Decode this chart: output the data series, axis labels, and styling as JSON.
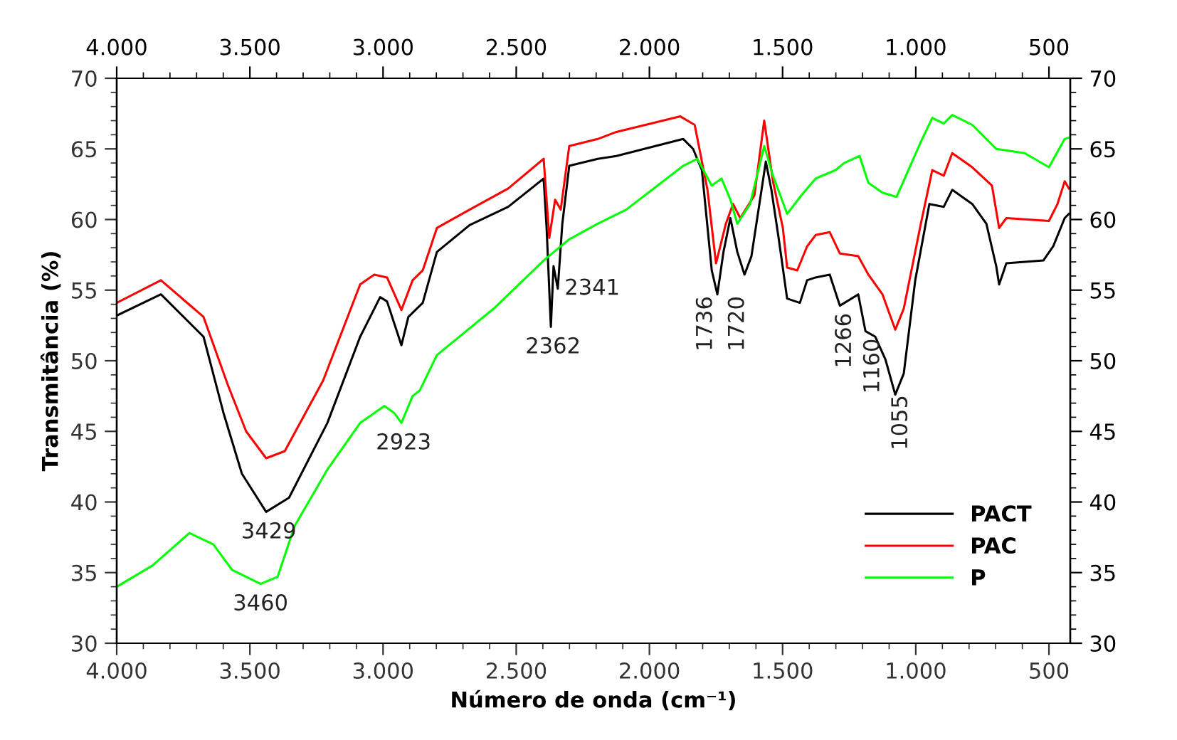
{
  "chart_data": {
    "type": "line",
    "xlabel": "Número de onda (cm⁻¹)",
    "ylabel": "Transmitância (%)",
    "xlim": [
      4000,
      420
    ],
    "ylim": [
      30,
      70
    ],
    "xticks": [
      {
        "value": 4000,
        "label": "4.000"
      },
      {
        "value": 3500,
        "label": "3.500"
      },
      {
        "value": 3000,
        "label": "3.000"
      },
      {
        "value": 2500,
        "label": "2.500"
      },
      {
        "value": 2000,
        "label": "2.000"
      },
      {
        "value": 1500,
        "label": "1.500"
      },
      {
        "value": 1000,
        "label": "1.000"
      },
      500
    ],
    "x2lim": [
      4000,
      420
    ],
    "x2ticks": [
      {
        "value": 4000,
        "label": "4.000"
      },
      {
        "value": 3500,
        "label": "3.500"
      },
      {
        "value": 3000,
        "label": "3.000"
      },
      {
        "value": 2500,
        "label": "2.500"
      },
      {
        "value": 2000,
        "label": "2.000"
      },
      {
        "value": 1500,
        "label": "1.500"
      },
      {
        "value": 1000,
        "label": "1.000"
      },
      500
    ],
    "yticks": [
      30,
      35,
      40,
      45,
      50,
      55,
      60,
      65,
      70
    ],
    "y2lim": [
      30,
      70
    ],
    "y2ticks": [
      30,
      35,
      40,
      45,
      50,
      55,
      60,
      65,
      70
    ],
    "grid": false,
    "legend": "bottom right",
    "marker": "none",
    "line_style": "solid",
    "series": [
      {
        "name": "PACT",
        "color": "#000000",
        "x": [
          4000,
          3834,
          3674,
          3599,
          3530,
          3439,
          3353,
          3209,
          3086,
          3011,
          2985,
          2931,
          2905,
          2851,
          2798,
          2675,
          2530,
          2397,
          2386,
          2370,
          2360,
          2344,
          2327,
          2301,
          2194,
          2124,
          1873,
          1836,
          1803,
          1766,
          1745,
          1722,
          1696,
          1670,
          1643,
          1617,
          1579,
          1563,
          1542,
          1515,
          1483,
          1435,
          1408,
          1376,
          1323,
          1285,
          1216,
          1189,
          1152,
          1114,
          1077,
          1045,
          1002,
          949,
          895,
          863,
          788,
          735,
          698,
          687,
          660,
          521,
          484,
          441,
          425
        ],
        "values": [
          53.2,
          54.7,
          51.7,
          46.3,
          42.0,
          39.3,
          40.3,
          45.6,
          51.7,
          54.5,
          54.2,
          51.1,
          53.1,
          54.1,
          57.7,
          59.6,
          60.9,
          62.9,
          59.4,
          52.4,
          56.7,
          55.1,
          59.7,
          63.8,
          64.3,
          64.5,
          65.7,
          65.0,
          63.5,
          56.4,
          54.7,
          57.7,
          60.1,
          57.7,
          56.1,
          57.4,
          62.1,
          64.1,
          62.1,
          58.7,
          54.4,
          54.1,
          55.7,
          55.9,
          56.1,
          53.9,
          54.7,
          52.1,
          51.7,
          50.1,
          47.6,
          49.1,
          55.7,
          61.1,
          60.9,
          62.1,
          61.1,
          59.7,
          56.7,
          55.4,
          56.9,
          57.1,
          58.1,
          60.1,
          60.4
        ]
      },
      {
        "name": "PAC",
        "color": "#ff0000",
        "x": [
          4000,
          3834,
          3674,
          3583,
          3514,
          3439,
          3369,
          3225,
          3086,
          3033,
          2985,
          2931,
          2889,
          2851,
          2798,
          2675,
          2530,
          2397,
          2376,
          2354,
          2333,
          2301,
          2194,
          2124,
          1884,
          1830,
          1782,
          1750,
          1713,
          1686,
          1659,
          1606,
          1569,
          1536,
          1499,
          1483,
          1445,
          1408,
          1376,
          1323,
          1285,
          1216,
          1178,
          1125,
          1077,
          1045,
          981,
          938,
          895,
          863,
          788,
          714,
          687,
          660,
          500,
          468,
          441,
          425
        ],
        "values": [
          54.1,
          55.7,
          53.1,
          48.3,
          45.0,
          43.1,
          43.6,
          48.6,
          55.4,
          56.1,
          55.9,
          53.6,
          55.7,
          56.4,
          59.4,
          60.7,
          62.2,
          64.3,
          58.7,
          61.4,
          60.7,
          65.2,
          65.7,
          66.2,
          67.3,
          66.7,
          62.1,
          56.9,
          59.7,
          61.1,
          60.1,
          61.7,
          67.0,
          62.7,
          59.4,
          56.6,
          56.4,
          58.1,
          58.9,
          59.1,
          57.6,
          57.4,
          56.1,
          54.7,
          52.2,
          53.7,
          59.7,
          63.5,
          63.1,
          64.7,
          63.7,
          62.4,
          59.4,
          60.1,
          59.9,
          61.1,
          62.7,
          62.2
        ]
      },
      {
        "name": "P",
        "color": "#00ff00",
        "x": [
          4000,
          3866,
          3727,
          3637,
          3567,
          3460,
          3396,
          3332,
          3209,
          3086,
          2995,
          2958,
          2931,
          2889,
          2862,
          2798,
          2584,
          2397,
          2365,
          2301,
          2194,
          2087,
          1873,
          1820,
          1766,
          1729,
          1696,
          1670,
          1622,
          1569,
          1536,
          1483,
          1430,
          1376,
          1301,
          1269,
          1211,
          1178,
          1125,
          1072,
          981,
          938,
          895,
          863,
          788,
          698,
          591,
          500,
          441,
          425
        ],
        "values": [
          34.0,
          35.5,
          37.8,
          37.0,
          35.2,
          34.2,
          34.7,
          38.3,
          42.3,
          45.6,
          46.8,
          46.3,
          45.6,
          47.5,
          47.9,
          50.4,
          53.7,
          57.1,
          57.6,
          58.6,
          59.7,
          60.7,
          63.8,
          64.3,
          62.4,
          62.9,
          61.4,
          59.7,
          61.1,
          65.2,
          63.1,
          60.4,
          61.7,
          62.9,
          63.5,
          64.0,
          64.5,
          62.6,
          61.9,
          61.6,
          65.5,
          67.2,
          66.8,
          67.4,
          66.7,
          65.0,
          64.7,
          63.7,
          65.7,
          65.8
        ]
      }
    ],
    "annotations": [
      {
        "text": "3429",
        "x": 3429,
        "y": 39.3
      },
      {
        "text": "3460",
        "x": 3460,
        "y": 34.2
      },
      {
        "text": "2923",
        "x": 2923,
        "y": 45.6
      },
      {
        "text": "2362",
        "x": 2362,
        "y": 52.4
      },
      {
        "text": "2341",
        "x": 2341,
        "y": 55.1
      },
      {
        "text": "1736",
        "x": 1736,
        "y": 55.0
      },
      {
        "text": "1720",
        "x": 1720,
        "y": 55.0
      },
      {
        "text": "1266",
        "x": 1266,
        "y": 53.8
      },
      {
        "text": "1160",
        "x": 1160,
        "y": 52.0
      },
      {
        "text": "1055",
        "x": 1055,
        "y": 48.0
      }
    ]
  }
}
